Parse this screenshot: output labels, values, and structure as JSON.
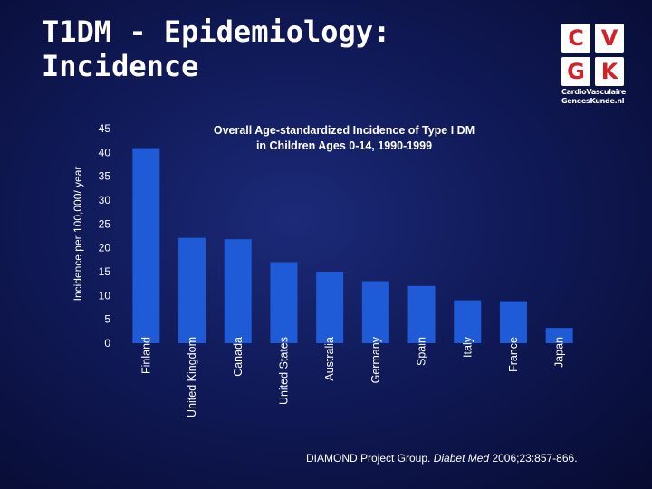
{
  "slide": {
    "title_line1": "T1DM - Epidemiology:",
    "title_line2": "Incidence"
  },
  "logo": {
    "letters": [
      "C",
      "V",
      "G",
      "K"
    ],
    "line1": "CardioVasculaire",
    "line2": "GeneesKunde.nl"
  },
  "citation": {
    "authors": "DIAMOND  Project  Group.",
    "journal": "Diabet Med",
    "details": "2006;23:857-866."
  },
  "colors": {
    "bar": "#1f5bd6",
    "text": "#ffffff",
    "logo_red": "#d2232a"
  },
  "chart_data": {
    "type": "bar",
    "title_line1": "Overall Age-standardized Incidence of Type I DM",
    "title_line2": "in Children Ages 0-14, 1990-1999",
    "ylabel": "Incidence per 100,000/ year",
    "xlabel": "",
    "ylim": [
      0,
      45
    ],
    "yticks": [
      0,
      5,
      10,
      15,
      20,
      25,
      30,
      35,
      40,
      45
    ],
    "categories": [
      "Finland",
      "United Kingdom",
      "Canada",
      "United States",
      "Australia",
      "Germany",
      "Spain",
      "Italy",
      "France",
      "Japan"
    ],
    "values": [
      40.9,
      22.1,
      21.8,
      17.0,
      15.0,
      13.0,
      12.0,
      9.0,
      8.8,
      3.2
    ],
    "grid": false
  }
}
